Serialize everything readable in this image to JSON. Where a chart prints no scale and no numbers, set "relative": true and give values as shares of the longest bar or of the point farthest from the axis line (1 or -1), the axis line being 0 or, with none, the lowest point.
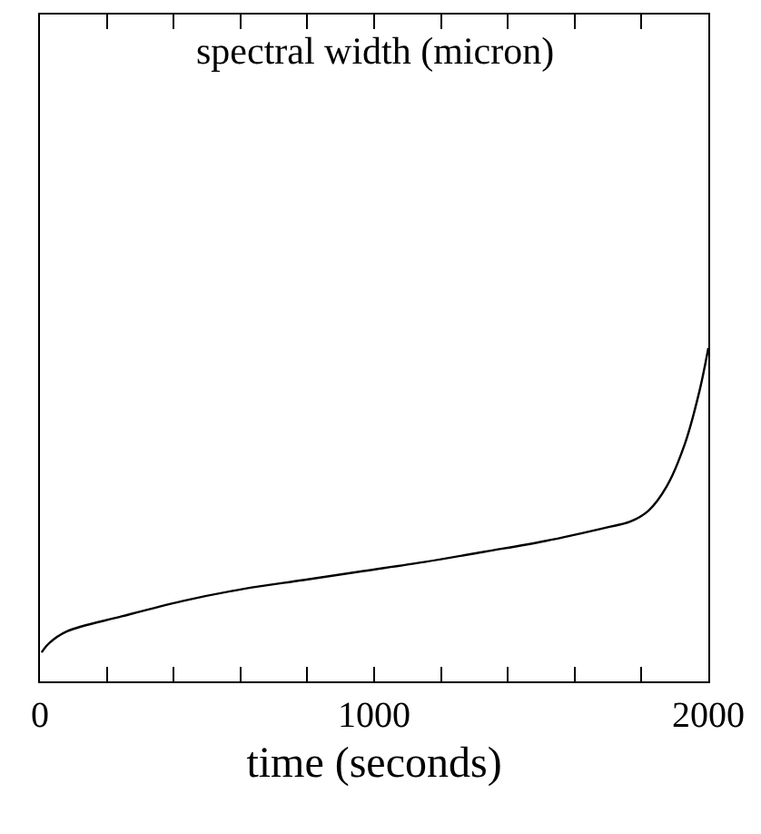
{
  "chart_data": {
    "type": "line",
    "title": "spectral width (micron)",
    "xlabel": "time (seconds)",
    "relative": true,
    "color": "#000000",
    "x": [
      5,
      27,
      81,
      245,
      426,
      607,
      788,
      969,
      1150,
      1331,
      1512,
      1693,
      1766,
      1821,
      1875,
      1929,
      1974,
      2000
    ],
    "values": [
      0.087,
      0.114,
      0.15,
      0.195,
      0.241,
      0.277,
      0.304,
      0.331,
      0.358,
      0.389,
      0.421,
      0.461,
      0.479,
      0.512,
      0.584,
      0.71,
      0.873,
      1.0
    ],
    "xlim": [
      0,
      2000
    ],
    "xticks": [
      0,
      {
        "value": 200,
        "label": null
      },
      {
        "value": 400,
        "label": null
      },
      {
        "value": 600,
        "label": null
      },
      {
        "value": 800,
        "label": null
      },
      1000,
      {
        "value": 1200,
        "label": null
      },
      {
        "value": 1400,
        "label": null
      },
      {
        "value": 1600,
        "label": null
      },
      {
        "value": 1800,
        "label": null
      },
      2000
    ],
    "marker": "none",
    "line_style": "solid"
  }
}
